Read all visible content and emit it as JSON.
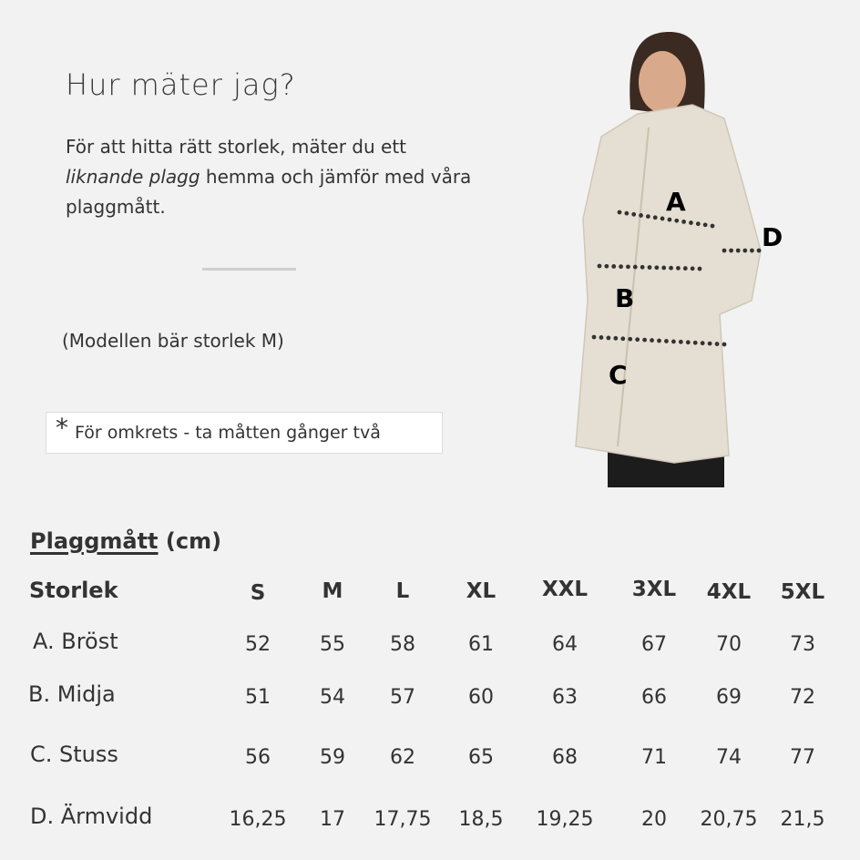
{
  "heading": "Hur mäter jag?",
  "intro": {
    "part1": "För att hitta rätt storlek, mäter du ett",
    "italic": "liknande plagg",
    "part2": "hemma och jämför med våra plaggmått."
  },
  "model_note": "(Modellen bär storlek M)",
  "footnote": {
    "symbol": "*",
    "text": "För omkrets - ta måtten gånger två"
  },
  "figure": {
    "measure_labels": [
      "A",
      "B",
      "C",
      "D"
    ],
    "coat_color": "#e4dfd2"
  },
  "table": {
    "title_underlined": "Plaggmått",
    "title_unit": "(cm)",
    "size_header": "Storlek",
    "sizes": [
      "S",
      "M",
      "L",
      "XL",
      "XXL",
      "3XL",
      "4XL",
      "5XL"
    ],
    "rows": [
      {
        "label": "A. Bröst",
        "values": [
          "52",
          "55",
          "58",
          "61",
          "64",
          "67",
          "70",
          "73"
        ]
      },
      {
        "label": "B. Midja",
        "values": [
          "51",
          "54",
          "57",
          "60",
          "63",
          "66",
          "69",
          "72"
        ]
      },
      {
        "label": "C. Stuss",
        "values": [
          "56",
          "59",
          "62",
          "65",
          "68",
          "71",
          "74",
          "77"
        ]
      },
      {
        "label": "D. Ärmvidd",
        "values": [
          "16,25",
          "17",
          "17,75",
          "18,5",
          "19,25",
          "20",
          "20,75",
          "21,5"
        ]
      }
    ]
  }
}
